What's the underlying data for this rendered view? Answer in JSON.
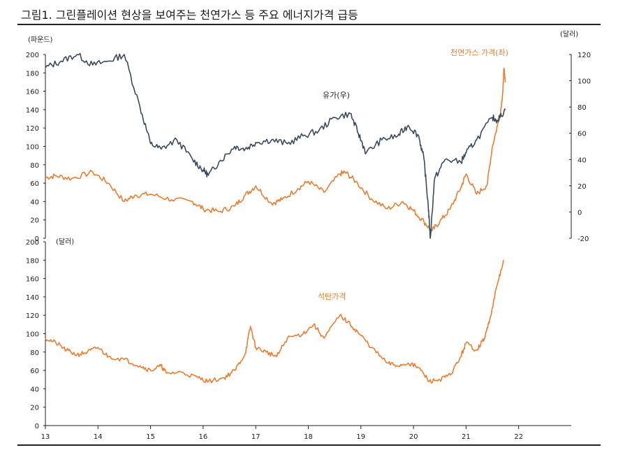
{
  "title": "그림1. 그린플레이션 현상을 보여주는 천연가스 등 주요 에너지가격 급등",
  "colors": {
    "gas": "#ED7D31",
    "oil": "#3B4A5E",
    "coal": "#ED7D31",
    "axis": "#222222"
  },
  "chart_data": [
    {
      "type": "line",
      "panel": "top",
      "x_ticks": [
        "13",
        "14",
        "15",
        "16",
        "17",
        "18",
        "19",
        "20",
        "21",
        "22"
      ],
      "left_axis": {
        "unit_label": "(파운드)",
        "ticks": [
          "200",
          "180",
          "160",
          "140",
          "120",
          "100",
          "80",
          "60",
          "40",
          "20",
          "0"
        ],
        "ylim": [
          0,
          200
        ]
      },
      "right_axis": {
        "unit_label": "(달러)",
        "ticks": [
          "120",
          "100",
          "80",
          "60",
          "40",
          "20",
          "0",
          "-20"
        ],
        "ylim": [
          -20,
          120
        ]
      },
      "series": [
        {
          "name": "천연가스 가격(좌)",
          "axis": "left",
          "x": [
            13.0,
            13.2,
            13.5,
            13.9,
            14.2,
            14.5,
            14.7,
            15.0,
            15.4,
            15.8,
            16.0,
            16.3,
            16.6,
            16.8,
            17.0,
            17.3,
            17.5,
            17.8,
            18.0,
            18.3,
            18.6,
            18.7,
            18.9,
            19.2,
            19.5,
            19.8,
            20.0,
            20.2,
            20.35,
            20.5,
            20.7,
            20.9,
            21.0,
            21.2,
            21.4,
            21.5,
            21.65,
            21.7,
            21.72,
            21.75
          ],
          "values": [
            66,
            68,
            65,
            72,
            60,
            40,
            47,
            48,
            42,
            40,
            32,
            29,
            35,
            47,
            57,
            38,
            42,
            54,
            62,
            50,
            70,
            72,
            62,
            43,
            32,
            40,
            30,
            18,
            8,
            18,
            32,
            55,
            70,
            48,
            58,
            100,
            135,
            160,
            185,
            170
          ]
        },
        {
          "name": "유가(우)",
          "axis": "right",
          "x": [
            13.0,
            13.3,
            13.6,
            13.9,
            14.2,
            14.5,
            14.8,
            15.0,
            15.2,
            15.5,
            15.8,
            16.0,
            16.1,
            16.3,
            16.6,
            16.8,
            17.0,
            17.3,
            17.6,
            17.9,
            18.2,
            18.5,
            18.8,
            18.95,
            19.1,
            19.4,
            19.7,
            19.9,
            20.1,
            20.2,
            20.28,
            20.32,
            20.4,
            20.6,
            20.9,
            21.0,
            21.2,
            21.5,
            21.6,
            21.75
          ],
          "values": [
            110,
            115,
            120,
            112,
            115,
            120,
            80,
            52,
            48,
            55,
            40,
            32,
            28,
            38,
            50,
            48,
            53,
            55,
            52,
            58,
            62,
            72,
            75,
            60,
            45,
            55,
            58,
            66,
            58,
            40,
            5,
            -20,
            25,
            40,
            38,
            45,
            55,
            72,
            70,
            78
          ]
        }
      ],
      "annotations": [
        "천연가스 가격(좌)",
        "유가(우)"
      ]
    },
    {
      "type": "line",
      "panel": "bottom",
      "x_ticks": [
        "13",
        "14",
        "15",
        "16",
        "17",
        "18",
        "19",
        "20",
        "21",
        "22"
      ],
      "left_axis": {
        "unit_label": "(달러)",
        "ticks": [
          "200",
          "180",
          "160",
          "140",
          "120",
          "100",
          "80",
          "60",
          "40",
          "20",
          "0"
        ],
        "ylim": [
          0,
          200
        ]
      },
      "series": [
        {
          "name": "석탄가격",
          "axis": "left",
          "x": [
            13.0,
            13.2,
            13.4,
            13.6,
            13.8,
            14.0,
            14.2,
            14.5,
            14.8,
            15.0,
            15.2,
            15.3,
            15.6,
            15.9,
            16.1,
            16.4,
            16.6,
            16.8,
            16.9,
            17.0,
            17.2,
            17.4,
            17.6,
            17.9,
            18.1,
            18.3,
            18.6,
            18.8,
            19.0,
            19.2,
            19.5,
            19.7,
            19.9,
            20.1,
            20.3,
            20.5,
            20.7,
            20.9,
            21.0,
            21.2,
            21.35,
            21.45,
            21.6,
            21.72
          ],
          "values": [
            95,
            90,
            82,
            77,
            80,
            85,
            75,
            72,
            65,
            60,
            65,
            57,
            58,
            52,
            48,
            52,
            60,
            78,
            108,
            85,
            80,
            75,
            95,
            100,
            110,
            95,
            120,
            110,
            98,
            85,
            68,
            65,
            68,
            63,
            48,
            50,
            55,
            75,
            90,
            82,
            95,
            115,
            155,
            180
          ]
        }
      ],
      "annotations": [
        "석탄가격"
      ]
    }
  ]
}
